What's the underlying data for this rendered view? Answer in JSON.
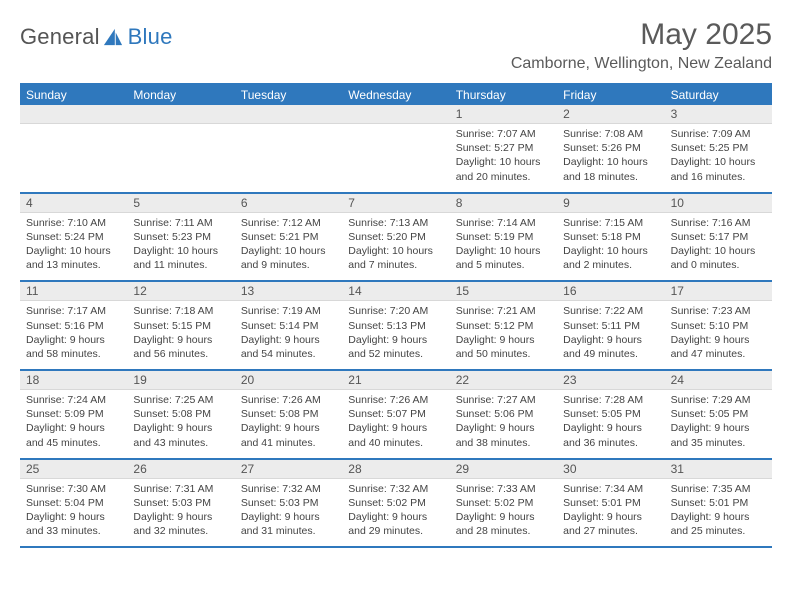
{
  "brand": {
    "part1": "General",
    "part2": "Blue"
  },
  "title": "May 2025",
  "location": "Camborne, Wellington, New Zealand",
  "colors": {
    "accent": "#2f78bd",
    "num_bg": "#ececec",
    "text": "#555555",
    "body_text": "#444444",
    "background": "#ffffff"
  },
  "typography": {
    "title_fontsize": 30,
    "location_fontsize": 16,
    "header_fontsize": 12,
    "cell_fontsize": 10.5
  },
  "layout": {
    "columns": 7,
    "rows": 5
  },
  "day_names": [
    "Sunday",
    "Monday",
    "Tuesday",
    "Wednesday",
    "Thursday",
    "Friday",
    "Saturday"
  ],
  "weeks": [
    {
      "nums": [
        "",
        "",
        "",
        "",
        "1",
        "2",
        "3"
      ],
      "cells": [
        {
          "lines": []
        },
        {
          "lines": []
        },
        {
          "lines": []
        },
        {
          "lines": []
        },
        {
          "lines": [
            "Sunrise: 7:07 AM",
            "Sunset: 5:27 PM",
            "Daylight: 10 hours",
            "and 20 minutes."
          ]
        },
        {
          "lines": [
            "Sunrise: 7:08 AM",
            "Sunset: 5:26 PM",
            "Daylight: 10 hours",
            "and 18 minutes."
          ]
        },
        {
          "lines": [
            "Sunrise: 7:09 AM",
            "Sunset: 5:25 PM",
            "Daylight: 10 hours",
            "and 16 minutes."
          ]
        }
      ]
    },
    {
      "nums": [
        "4",
        "5",
        "6",
        "7",
        "8",
        "9",
        "10"
      ],
      "cells": [
        {
          "lines": [
            "Sunrise: 7:10 AM",
            "Sunset: 5:24 PM",
            "Daylight: 10 hours",
            "and 13 minutes."
          ]
        },
        {
          "lines": [
            "Sunrise: 7:11 AM",
            "Sunset: 5:23 PM",
            "Daylight: 10 hours",
            "and 11 minutes."
          ]
        },
        {
          "lines": [
            "Sunrise: 7:12 AM",
            "Sunset: 5:21 PM",
            "Daylight: 10 hours",
            "and 9 minutes."
          ]
        },
        {
          "lines": [
            "Sunrise: 7:13 AM",
            "Sunset: 5:20 PM",
            "Daylight: 10 hours",
            "and 7 minutes."
          ]
        },
        {
          "lines": [
            "Sunrise: 7:14 AM",
            "Sunset: 5:19 PM",
            "Daylight: 10 hours",
            "and 5 minutes."
          ]
        },
        {
          "lines": [
            "Sunrise: 7:15 AM",
            "Sunset: 5:18 PM",
            "Daylight: 10 hours",
            "and 2 minutes."
          ]
        },
        {
          "lines": [
            "Sunrise: 7:16 AM",
            "Sunset: 5:17 PM",
            "Daylight: 10 hours",
            "and 0 minutes."
          ]
        }
      ]
    },
    {
      "nums": [
        "11",
        "12",
        "13",
        "14",
        "15",
        "16",
        "17"
      ],
      "cells": [
        {
          "lines": [
            "Sunrise: 7:17 AM",
            "Sunset: 5:16 PM",
            "Daylight: 9 hours",
            "and 58 minutes."
          ]
        },
        {
          "lines": [
            "Sunrise: 7:18 AM",
            "Sunset: 5:15 PM",
            "Daylight: 9 hours",
            "and 56 minutes."
          ]
        },
        {
          "lines": [
            "Sunrise: 7:19 AM",
            "Sunset: 5:14 PM",
            "Daylight: 9 hours",
            "and 54 minutes."
          ]
        },
        {
          "lines": [
            "Sunrise: 7:20 AM",
            "Sunset: 5:13 PM",
            "Daylight: 9 hours",
            "and 52 minutes."
          ]
        },
        {
          "lines": [
            "Sunrise: 7:21 AM",
            "Sunset: 5:12 PM",
            "Daylight: 9 hours",
            "and 50 minutes."
          ]
        },
        {
          "lines": [
            "Sunrise: 7:22 AM",
            "Sunset: 5:11 PM",
            "Daylight: 9 hours",
            "and 49 minutes."
          ]
        },
        {
          "lines": [
            "Sunrise: 7:23 AM",
            "Sunset: 5:10 PM",
            "Daylight: 9 hours",
            "and 47 minutes."
          ]
        }
      ]
    },
    {
      "nums": [
        "18",
        "19",
        "20",
        "21",
        "22",
        "23",
        "24"
      ],
      "cells": [
        {
          "lines": [
            "Sunrise: 7:24 AM",
            "Sunset: 5:09 PM",
            "Daylight: 9 hours",
            "and 45 minutes."
          ]
        },
        {
          "lines": [
            "Sunrise: 7:25 AM",
            "Sunset: 5:08 PM",
            "Daylight: 9 hours",
            "and 43 minutes."
          ]
        },
        {
          "lines": [
            "Sunrise: 7:26 AM",
            "Sunset: 5:08 PM",
            "Daylight: 9 hours",
            "and 41 minutes."
          ]
        },
        {
          "lines": [
            "Sunrise: 7:26 AM",
            "Sunset: 5:07 PM",
            "Daylight: 9 hours",
            "and 40 minutes."
          ]
        },
        {
          "lines": [
            "Sunrise: 7:27 AM",
            "Sunset: 5:06 PM",
            "Daylight: 9 hours",
            "and 38 minutes."
          ]
        },
        {
          "lines": [
            "Sunrise: 7:28 AM",
            "Sunset: 5:05 PM",
            "Daylight: 9 hours",
            "and 36 minutes."
          ]
        },
        {
          "lines": [
            "Sunrise: 7:29 AM",
            "Sunset: 5:05 PM",
            "Daylight: 9 hours",
            "and 35 minutes."
          ]
        }
      ]
    },
    {
      "nums": [
        "25",
        "26",
        "27",
        "28",
        "29",
        "30",
        "31"
      ],
      "cells": [
        {
          "lines": [
            "Sunrise: 7:30 AM",
            "Sunset: 5:04 PM",
            "Daylight: 9 hours",
            "and 33 minutes."
          ]
        },
        {
          "lines": [
            "Sunrise: 7:31 AM",
            "Sunset: 5:03 PM",
            "Daylight: 9 hours",
            "and 32 minutes."
          ]
        },
        {
          "lines": [
            "Sunrise: 7:32 AM",
            "Sunset: 5:03 PM",
            "Daylight: 9 hours",
            "and 31 minutes."
          ]
        },
        {
          "lines": [
            "Sunrise: 7:32 AM",
            "Sunset: 5:02 PM",
            "Daylight: 9 hours",
            "and 29 minutes."
          ]
        },
        {
          "lines": [
            "Sunrise: 7:33 AM",
            "Sunset: 5:02 PM",
            "Daylight: 9 hours",
            "and 28 minutes."
          ]
        },
        {
          "lines": [
            "Sunrise: 7:34 AM",
            "Sunset: 5:01 PM",
            "Daylight: 9 hours",
            "and 27 minutes."
          ]
        },
        {
          "lines": [
            "Sunrise: 7:35 AM",
            "Sunset: 5:01 PM",
            "Daylight: 9 hours",
            "and 25 minutes."
          ]
        }
      ]
    }
  ]
}
